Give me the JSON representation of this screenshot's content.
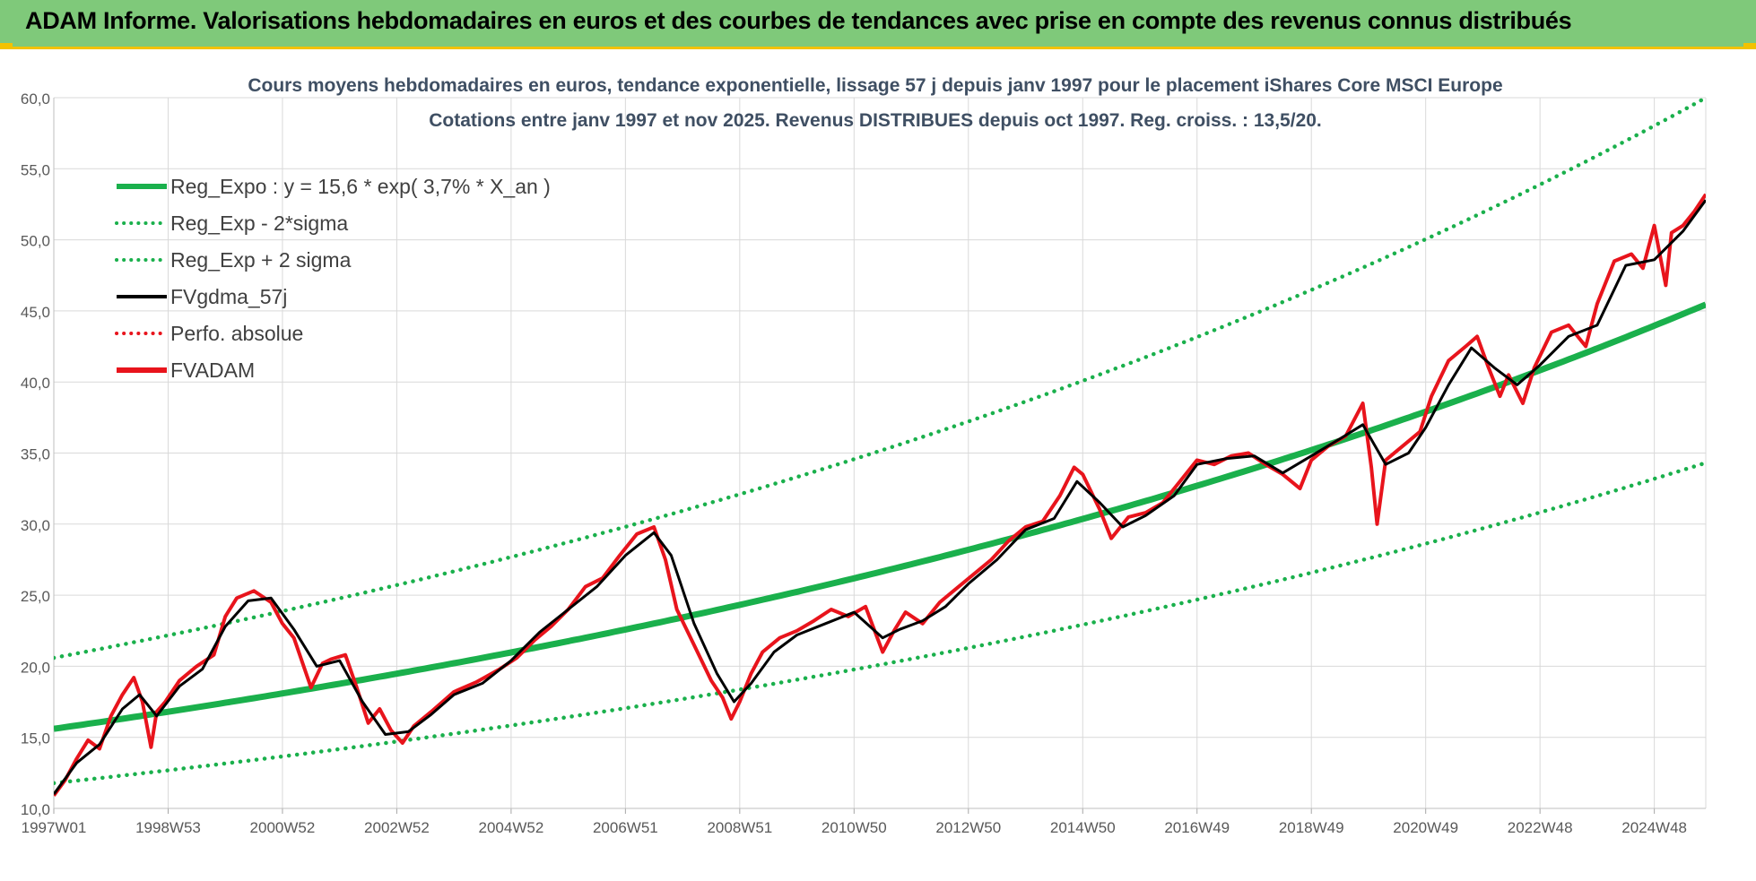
{
  "banner": {
    "title": "ADAM Informe. Valorisations hebdomadaires en euros et des courbes de tendances avec prise en compte des revenus connus distribués"
  },
  "colors": {
    "banner_bg": "#7fc97a",
    "accent_yellow": "#f2c200",
    "reg_expo": "#1ab04c",
    "fv_adam": "#e8141c",
    "fvgdma": "#000000",
    "grid": "#d9d9d9"
  },
  "chart_data": {
    "type": "line",
    "title_line1": "Cours moyens hebdomadaires en euros, tendance exponentielle, lissage 57 j depuis janv 1997 pour le placement iShares Core MSCI Europe",
    "title_line2": "Cotations entre janv 1997 et nov 2025. Revenus DISTRIBUES depuis oct 1997. Reg. croiss. : 13,5/20.",
    "xlabel": "",
    "ylabel": "",
    "ylim": [
      10,
      60
    ],
    "xlim": [
      1997.0,
      2025.9
    ],
    "y_ticks": [
      "10,0",
      "15,0",
      "20,0",
      "25,0",
      "30,0",
      "35,0",
      "40,0",
      "45,0",
      "50,0",
      "55,0",
      "60,0"
    ],
    "x_tick_labels": [
      "1997W01",
      "1998W53",
      "2000W52",
      "2002W52",
      "2004W52",
      "2006W51",
      "2008W51",
      "2010W50",
      "2012W50",
      "2014W50",
      "2016W49",
      "2018W49",
      "2020W49",
      "2022W48",
      "2024W48"
    ],
    "x_tick_years": [
      1997.0,
      1999.0,
      2001.0,
      2003.0,
      2005.0,
      2007.0,
      2009.0,
      2011.0,
      2013.0,
      2015.0,
      2017.0,
      2019.0,
      2021.0,
      2023.0,
      2025.0
    ],
    "legend_position": "top-left",
    "legend": [
      {
        "label": "Reg_Expo : y = 15,6 * exp( 3,7% *  X_an )",
        "style": "solid-thick",
        "color": "#1ab04c"
      },
      {
        "label": "Reg_Exp - 2*sigma",
        "style": "dotted",
        "color": "#1ab04c"
      },
      {
        "label": "Reg_Exp + 2 sigma",
        "style": "dotted",
        "color": "#1ab04c"
      },
      {
        "label": "FVgdma_57j",
        "style": "solid",
        "color": "#000000"
      },
      {
        "label": "Perfo. absolue",
        "style": "dotted",
        "color": "#e8141c"
      },
      {
        "label": "FVADAM",
        "style": "solid-thick",
        "color": "#e8141c"
      }
    ],
    "regression": {
      "a": 15.6,
      "rate": 0.037,
      "minus_2sigma_factor": 0.755,
      "plus_2sigma_factor": 1.32
    },
    "series": [
      {
        "name": "FVADAM",
        "x": [
          1997.0,
          1997.2,
          1997.4,
          1997.6,
          1997.8,
          1998.0,
          1998.2,
          1998.4,
          1998.55,
          1998.7,
          1998.8,
          1998.95,
          1999.2,
          1999.5,
          1999.8,
          2000.0,
          2000.2,
          2000.5,
          2000.8,
          2001.0,
          2001.2,
          2001.5,
          2001.7,
          2001.85,
          2002.1,
          2002.3,
          2002.5,
          2002.7,
          2002.9,
          2003.1,
          2003.3,
          2003.6,
          2004.0,
          2004.4,
          2004.8,
          2005.1,
          2005.4,
          2005.7,
          2006.0,
          2006.3,
          2006.6,
          2006.9,
          2007.2,
          2007.5,
          2007.7,
          2007.9,
          2008.2,
          2008.5,
          2008.7,
          2008.85,
          2009.0,
          2009.2,
          2009.4,
          2009.7,
          2010.0,
          2010.3,
          2010.6,
          2010.9,
          2011.2,
          2011.5,
          2011.7,
          2011.9,
          2012.2,
          2012.5,
          2012.8,
          2013.1,
          2013.4,
          2013.7,
          2014.0,
          2014.3,
          2014.6,
          2014.85,
          2015.0,
          2015.3,
          2015.5,
          2015.8,
          2016.1,
          2016.4,
          2016.7,
          2017.0,
          2017.3,
          2017.6,
          2017.9,
          2018.2,
          2018.5,
          2018.8,
          2019.0,
          2019.3,
          2019.6,
          2019.9,
          2020.05,
          2020.15,
          2020.3,
          2020.6,
          2020.9,
          2021.1,
          2021.4,
          2021.7,
          2021.9,
          2022.1,
          2022.3,
          2022.45,
          2022.7,
          2022.9,
          2023.2,
          2023.5,
          2023.8,
          2024.0,
          2024.3,
          2024.6,
          2024.8,
          2025.0,
          2025.2,
          2025.3,
          2025.5,
          2025.7,
          2025.9
        ],
        "values": [
          10.9,
          12.0,
          13.5,
          14.8,
          14.2,
          16.5,
          18.0,
          19.2,
          17.5,
          14.3,
          16.8,
          17.5,
          19.0,
          20.0,
          20.8,
          23.5,
          24.8,
          25.3,
          24.5,
          23.0,
          22.0,
          18.5,
          20.2,
          20.5,
          20.8,
          18.5,
          16.0,
          17.0,
          15.5,
          14.6,
          15.8,
          16.8,
          18.2,
          18.9,
          19.8,
          20.6,
          21.8,
          22.8,
          24.0,
          25.6,
          26.2,
          27.8,
          29.3,
          29.8,
          27.5,
          24.0,
          21.5,
          19.0,
          17.8,
          16.3,
          17.5,
          19.5,
          21.0,
          22.0,
          22.5,
          23.2,
          24.0,
          23.5,
          24.2,
          21.0,
          22.5,
          23.8,
          23.0,
          24.5,
          25.5,
          26.5,
          27.5,
          28.8,
          29.8,
          30.2,
          32.0,
          34.0,
          33.5,
          31.0,
          29.0,
          30.5,
          30.8,
          31.5,
          33.0,
          34.5,
          34.2,
          34.8,
          35.0,
          34.2,
          33.5,
          32.5,
          34.5,
          35.5,
          36.2,
          38.5,
          34.0,
          30.0,
          34.5,
          35.5,
          36.5,
          39.0,
          41.5,
          42.5,
          43.2,
          41.0,
          39.0,
          40.5,
          38.5,
          41.0,
          43.5,
          44.0,
          42.5,
          45.5,
          48.5,
          49.0,
          48.0,
          51.0,
          46.8,
          50.5,
          51.0,
          52.0,
          53.2
        ]
      },
      {
        "name": "FVgdma_57j",
        "x": [
          1997.0,
          1997.4,
          1997.8,
          1998.2,
          1998.5,
          1998.8,
          1999.2,
          1999.6,
          2000.0,
          2000.4,
          2000.8,
          2001.2,
          2001.6,
          2002.0,
          2002.4,
          2002.8,
          2003.2,
          2003.6,
          2004.0,
          2004.5,
          2005.0,
          2005.5,
          2006.0,
          2006.5,
          2007.0,
          2007.5,
          2007.8,
          2008.2,
          2008.6,
          2008.9,
          2009.2,
          2009.6,
          2010.0,
          2010.5,
          2011.0,
          2011.5,
          2011.8,
          2012.2,
          2012.6,
          2013.0,
          2013.5,
          2014.0,
          2014.5,
          2014.9,
          2015.3,
          2015.7,
          2016.1,
          2016.6,
          2017.0,
          2017.5,
          2018.0,
          2018.5,
          2019.0,
          2019.5,
          2019.9,
          2020.3,
          2020.7,
          2021.0,
          2021.4,
          2021.8,
          2022.2,
          2022.6,
          2023.0,
          2023.5,
          2024.0,
          2024.5,
          2025.0,
          2025.5,
          2025.9
        ],
        "values": [
          11.0,
          13.2,
          14.5,
          17.0,
          18.0,
          16.5,
          18.6,
          19.8,
          22.8,
          24.6,
          24.8,
          22.6,
          20.0,
          20.4,
          17.5,
          15.2,
          15.4,
          16.6,
          18.0,
          18.8,
          20.4,
          22.4,
          24.0,
          25.6,
          27.8,
          29.4,
          27.8,
          23.0,
          19.5,
          17.5,
          18.8,
          21.0,
          22.2,
          23.0,
          23.8,
          22.0,
          22.6,
          23.2,
          24.2,
          25.8,
          27.5,
          29.6,
          30.4,
          33.0,
          31.5,
          29.8,
          30.6,
          32.0,
          34.2,
          34.6,
          34.8,
          33.6,
          34.8,
          36.0,
          37.0,
          34.2,
          35.0,
          36.8,
          39.8,
          42.4,
          41.0,
          39.8,
          41.2,
          43.2,
          44.0,
          48.2,
          48.6,
          50.6,
          52.8
        ]
      }
    ]
  }
}
